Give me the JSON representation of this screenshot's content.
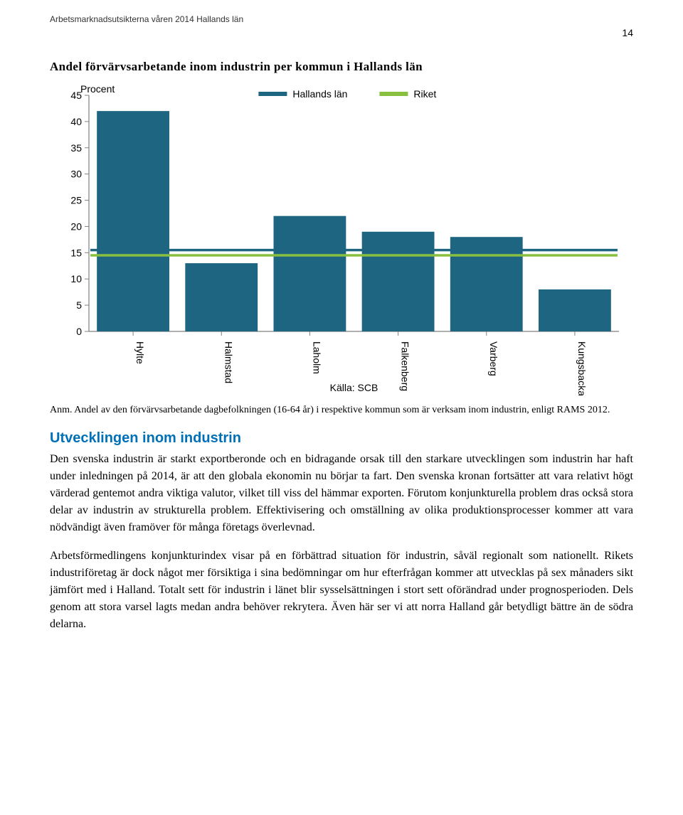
{
  "header": {
    "running_title": "Arbetsmarknadsutsikterna våren 2014 Hallands län",
    "page_number": "14"
  },
  "chart": {
    "title": "Andel förvärvsarbetande inom industrin per kommun i Hallands län",
    "type": "bar",
    "y_label": "Procent",
    "categories": [
      "Hylte",
      "Halmstad",
      "Laholm",
      "Falkenberg",
      "Varberg",
      "Kungsbacka"
    ],
    "values": [
      42,
      13,
      22,
      19,
      18,
      8
    ],
    "bar_color": "#1e6581",
    "hallands_line_value": 15.5,
    "riket_line_value": 14.5,
    "hallands_line_color": "#1e6581",
    "riket_line_color": "#88bf3f",
    "legend": {
      "hallands": "Hallands län",
      "riket": "Riket"
    },
    "ylim": [
      0,
      45
    ],
    "ytick_step": 5,
    "background_color": "#ffffff",
    "axis_color": "#808080",
    "source_label": "Källa: SCB",
    "note": "Anm. Andel av den förvärvsarbetande dagbefolkningen (16-64 år) i respektive kommun som är verksam inom industrin, enligt RAMS 2012."
  },
  "section": {
    "heading": "Utvecklingen inom industrin",
    "heading_color": "#0070b8",
    "para1": "Den svenska industrin är starkt exportberonde och en bidragande orsak till den starkare utvecklingen som industrin har haft under inledningen på 2014, är att den globala ekonomin nu börjar ta fart. Den svenska kronan fortsätter att vara relativt högt värderad gentemot andra viktiga valutor, vilket till viss del hämmar exporten. Förutom konjunkturella problem dras också stora delar av industrin av strukturella problem. Effektivisering och omställning av olika produktionsprocesser kommer att vara nödvändigt även framöver för många företags överlevnad.",
    "para2": "Arbetsförmedlingens konjunkturindex visar på en förbättrad situation för industrin, såväl regionalt som nationellt. Rikets industriföretag är dock något mer försiktiga i sina bedömningar om hur efterfrågan kommer att utvecklas på sex månaders sikt jämfört med i Halland. Totalt sett för industrin i länet blir sysselsättningen i stort sett oförändrad under prognosperioden. Dels genom att stora varsel lagts medan andra behöver rekrytera. Även här ser vi att norra Halland går betydligt bättre än de södra delarna."
  }
}
